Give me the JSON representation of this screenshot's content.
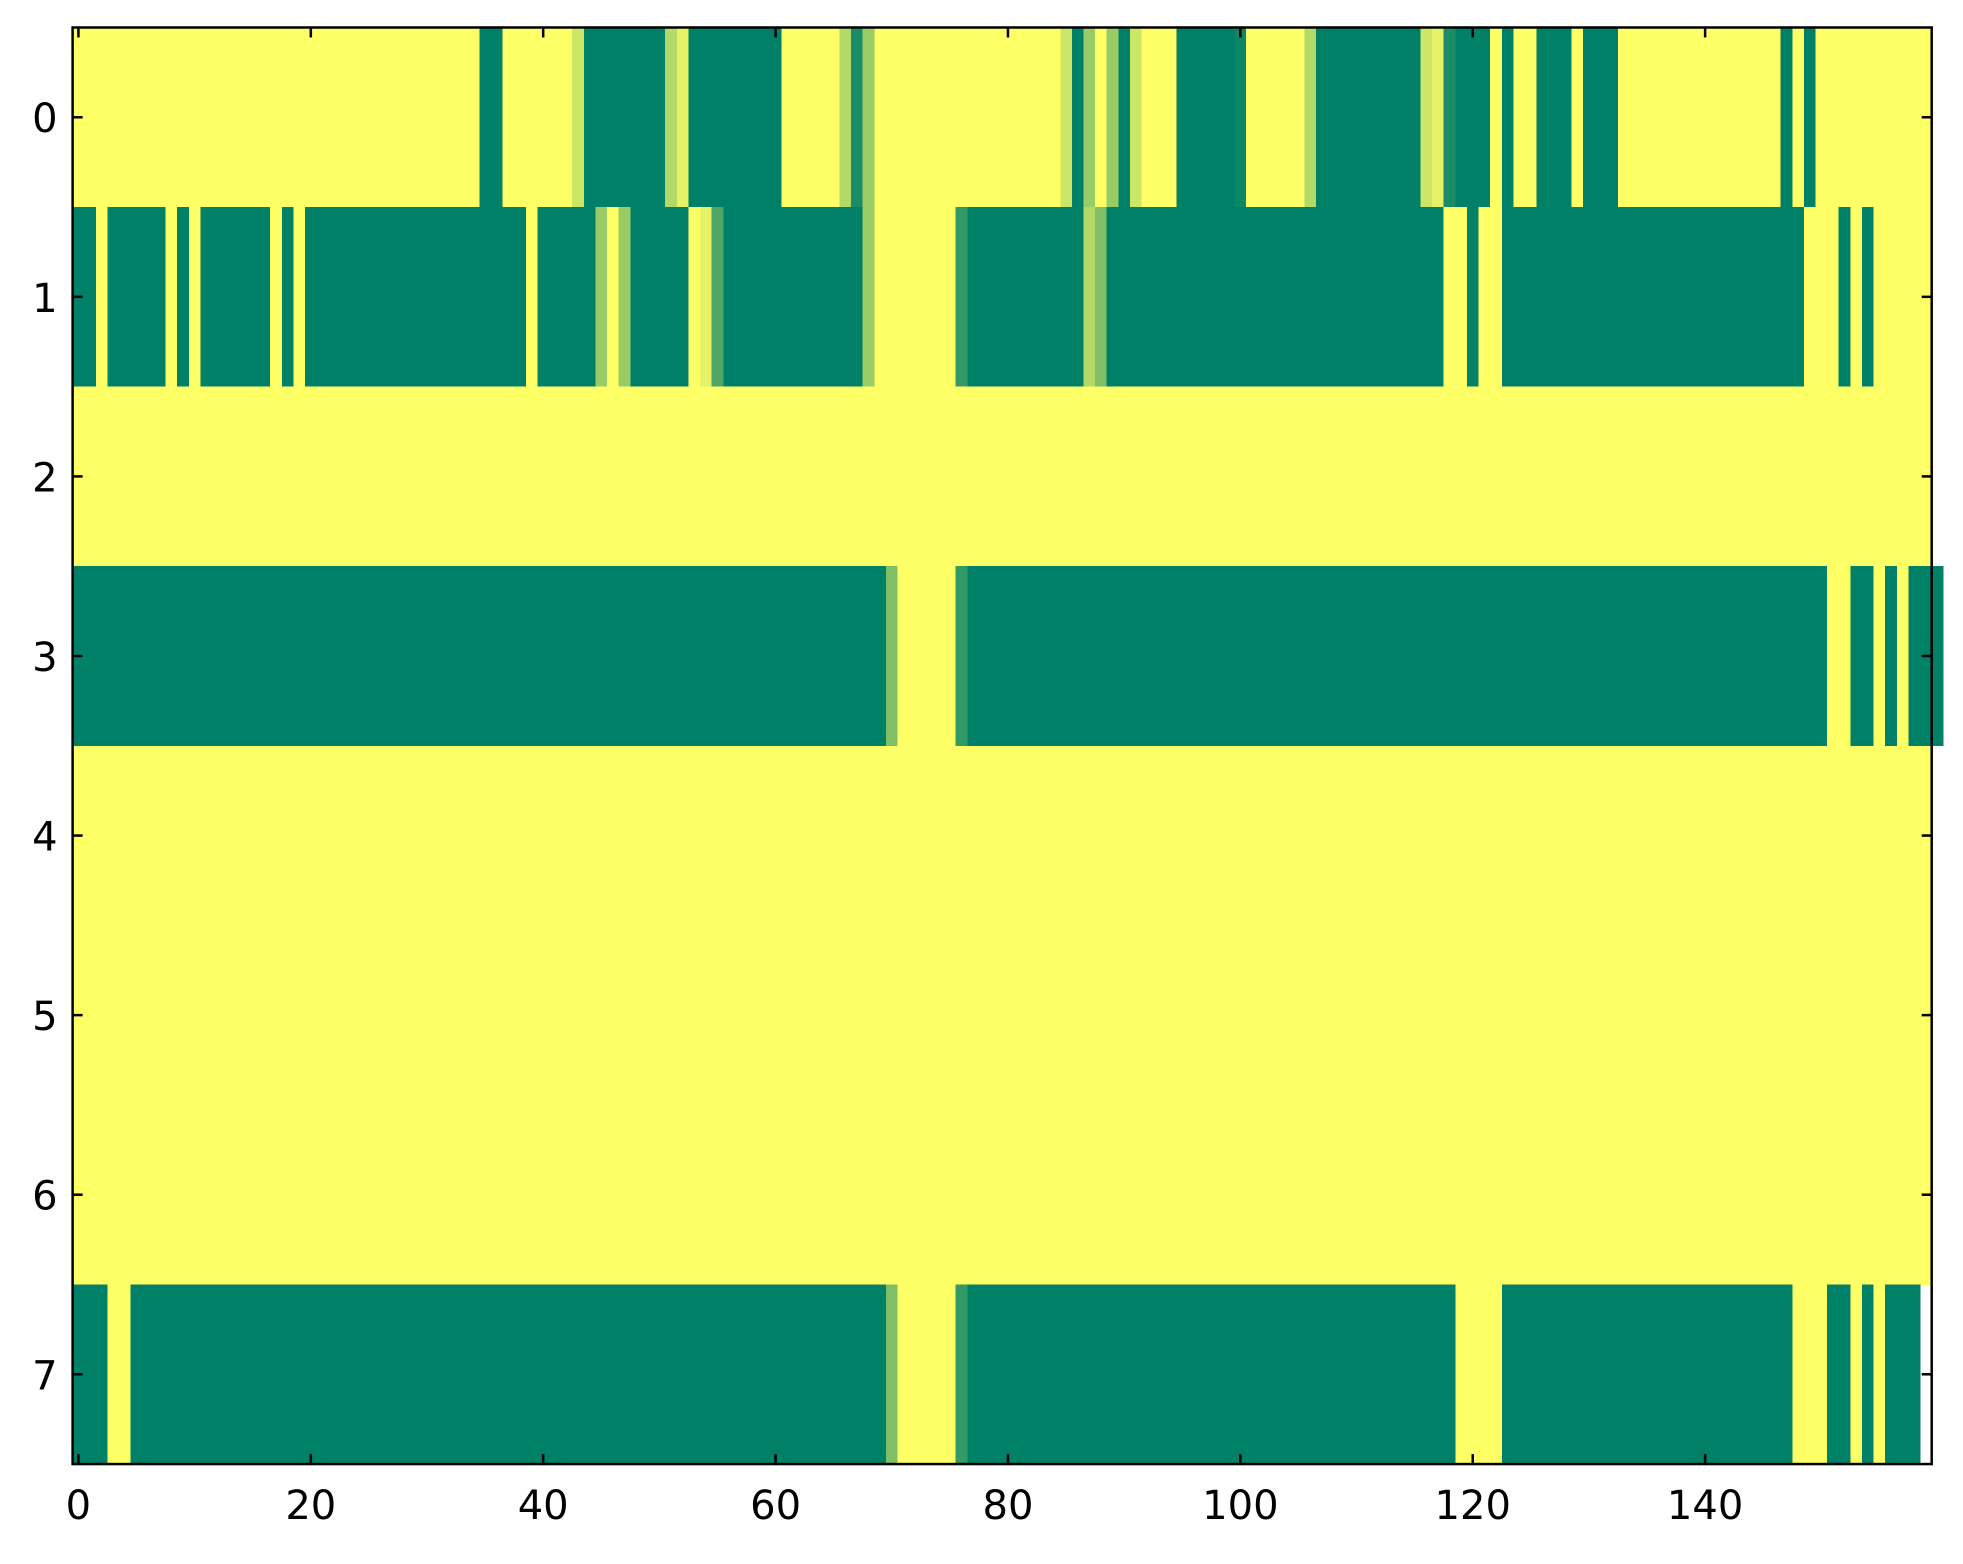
{
  "chart_data": {
    "type": "heatmap",
    "colormap": "summer",
    "xlim": [
      -0.5,
      159.5
    ],
    "ylim": [
      7.5,
      -0.5
    ],
    "xticks": [
      0,
      20,
      40,
      60,
      80,
      100,
      120,
      140
    ],
    "yticks": [
      0,
      1,
      2,
      3,
      4,
      5,
      6,
      7
    ],
    "z": [
      [
        1,
        1,
        1,
        1,
        1,
        1,
        1,
        1,
        1,
        1,
        1,
        1,
        1,
        1,
        1,
        1,
        1,
        1,
        1,
        1,
        1,
        1,
        1,
        1,
        1,
        1,
        1,
        1,
        1,
        1,
        1,
        1,
        1,
        1,
        1,
        0,
        0,
        1,
        1,
        1,
        1,
        1,
        1,
        0.8,
        0,
        0,
        0,
        0,
        0,
        0,
        0,
        0.7,
        0.9,
        0,
        0,
        0,
        0,
        0,
        0,
        0,
        0,
        1,
        1,
        1,
        1,
        1,
        0.7,
        0.1,
        0.6,
        1,
        1,
        1,
        1,
        1,
        1,
        1,
        1,
        1,
        1,
        1,
        1,
        1,
        1,
        1,
        1,
        0.8,
        0,
        0.6,
        1,
        0.6,
        0,
        0.8,
        1,
        1,
        1,
        0,
        0,
        0,
        0,
        0,
        0.05,
        1,
        1,
        1,
        1,
        1,
        0.7,
        0,
        0,
        0,
        0,
        0,
        0,
        0,
        0,
        0,
        0.8,
        0.9,
        0.1,
        0,
        0,
        0,
        1,
        0,
        1,
        1,
        0,
        0,
        0,
        1,
        0,
        0,
        0,
        1,
        1,
        1,
        1,
        1,
        1,
        1,
        1,
        1,
        1,
        1,
        1,
        1,
        1,
        0,
        1,
        0,
        1,
        1,
        1,
        1,
        1,
        1,
        1,
        1,
        1,
        1
      ],
      [
        0,
        0,
        1,
        0,
        0,
        0,
        0,
        0,
        1,
        0,
        1,
        0,
        0,
        0,
        0,
        0,
        0,
        1,
        0,
        1,
        0,
        0,
        0,
        0,
        0,
        0,
        0,
        0,
        0,
        0,
        0,
        0,
        0,
        0,
        0,
        0,
        0,
        0,
        0,
        1,
        0,
        0,
        0,
        0,
        0,
        0.6,
        1,
        0.6,
        0,
        0,
        0,
        0,
        0,
        1,
        0.9,
        0.3,
        0,
        0,
        0,
        0,
        0,
        0,
        0,
        0,
        0,
        0,
        0,
        0,
        0.6,
        1,
        1,
        1,
        1,
        1,
        1,
        1,
        0.2,
        0,
        0,
        0,
        0,
        0,
        0,
        0,
        0,
        0,
        0,
        0.7,
        0.5,
        0,
        0,
        0,
        0,
        0,
        0,
        0,
        0,
        0,
        0,
        0,
        0,
        0,
        0,
        0,
        0,
        0,
        0,
        0,
        0,
        0,
        0,
        0,
        0,
        0,
        0,
        0,
        0,
        0,
        1,
        1,
        0,
        1,
        1,
        0,
        0,
        0,
        0,
        0,
        0,
        0,
        0,
        0,
        0,
        0,
        0,
        0,
        0,
        0,
        0,
        0,
        0,
        0,
        0,
        0,
        0,
        0,
        0,
        0,
        0,
        1,
        1,
        1,
        0,
        1,
        0,
        1,
        1,
        1,
        1,
        1
      ],
      [
        1,
        1,
        1,
        1,
        1,
        1,
        1,
        1,
        1,
        1,
        1,
        1,
        1,
        1,
        1,
        1,
        1,
        1,
        1,
        1,
        1,
        1,
        1,
        1,
        1,
        1,
        1,
        1,
        1,
        1,
        1,
        1,
        1,
        1,
        1,
        1,
        1,
        1,
        1,
        1,
        1,
        1,
        1,
        1,
        1,
        1,
        1,
        1,
        1,
        1,
        1,
        1,
        1,
        1,
        1,
        1,
        1,
        1,
        1,
        1,
        1,
        1,
        1,
        1,
        1,
        1,
        1,
        1,
        1,
        1,
        1,
        1,
        1,
        1,
        1,
        1,
        1,
        1,
        1,
        1,
        1,
        1,
        1,
        1,
        1,
        1,
        1,
        1,
        1,
        1,
        1,
        1,
        1,
        1,
        1,
        1,
        1,
        1,
        1,
        1,
        1,
        1,
        1,
        1,
        1,
        1,
        1,
        1,
        1,
        1,
        1,
        1,
        1,
        1,
        1,
        1,
        1,
        1,
        1,
        1,
        1,
        1,
        1,
        1,
        1,
        1,
        1,
        1,
        1,
        1,
        1,
        1,
        1,
        1,
        1,
        1,
        1,
        1,
        1,
        1,
        1,
        1,
        1,
        1,
        1,
        1,
        1,
        1,
        1,
        1,
        1,
        1,
        1,
        1,
        1,
        1,
        1,
        1,
        1,
        1
      ],
      [
        0,
        0,
        0,
        0,
        0,
        0,
        0,
        0,
        0,
        0,
        0,
        0,
        0,
        0,
        0,
        0,
        0,
        0,
        0,
        0,
        0,
        0,
        0,
        0,
        0,
        0,
        0,
        0,
        0,
        0,
        0,
        0,
        0,
        0,
        0,
        0,
        0,
        0,
        0,
        0,
        0,
        0,
        0,
        0,
        0,
        0,
        0,
        0,
        0,
        0,
        0,
        0,
        0,
        0,
        0,
        0,
        0,
        0,
        0,
        0,
        0,
        0,
        0,
        0,
        0,
        0,
        0,
        0,
        0,
        0,
        0.5,
        1,
        1,
        1,
        1,
        1,
        0.2,
        0,
        0,
        0,
        0,
        0,
        0,
        0,
        0,
        0,
        0,
        0,
        0,
        0,
        0,
        0,
        0,
        0,
        0,
        0,
        0,
        0,
        0,
        0,
        0,
        0,
        0,
        0,
        0,
        0,
        0,
        0,
        0,
        0,
        0,
        0,
        0,
        0,
        0,
        0,
        0,
        0,
        0,
        0,
        0,
        0,
        0,
        0,
        0,
        0,
        0,
        0,
        0,
        0,
        0,
        0,
        0,
        0,
        0,
        0,
        0,
        0,
        0,
        0,
        0,
        0,
        0,
        0,
        0,
        0,
        0,
        0,
        0,
        0,
        0,
        1,
        1,
        0,
        0,
        1,
        0,
        1,
        0,
        0,
        0
      ],
      [
        1,
        1,
        1,
        1,
        1,
        1,
        1,
        1,
        1,
        1,
        1,
        1,
        1,
        1,
        1,
        1,
        1,
        1,
        1,
        1,
        1,
        1,
        1,
        1,
        1,
        1,
        1,
        1,
        1,
        1,
        1,
        1,
        1,
        1,
        1,
        1,
        1,
        1,
        1,
        1,
        1,
        1,
        1,
        1,
        1,
        1,
        1,
        1,
        1,
        1,
        1,
        1,
        1,
        1,
        1,
        1,
        1,
        1,
        1,
        1,
        1,
        1,
        1,
        1,
        1,
        1,
        1,
        1,
        1,
        1,
        1,
        1,
        1,
        1,
        1,
        1,
        1,
        1,
        1,
        1,
        1,
        1,
        1,
        1,
        1,
        1,
        1,
        1,
        1,
        1,
        1,
        1,
        1,
        1,
        1,
        1,
        1,
        1,
        1,
        1,
        1,
        1,
        1,
        1,
        1,
        1,
        1,
        1,
        1,
        1,
        1,
        1,
        1,
        1,
        1,
        1,
        1,
        1,
        1,
        1,
        1,
        1,
        1,
        1,
        1,
        1,
        1,
        1,
        1,
        1,
        1,
        1,
        1,
        1,
        1,
        1,
        1,
        1,
        1,
        1,
        1,
        1,
        1,
        1,
        1,
        1,
        1,
        1,
        1,
        1,
        1,
        1,
        1,
        1,
        1,
        1,
        1,
        1,
        1,
        1
      ],
      [
        1,
        1,
        1,
        1,
        1,
        1,
        1,
        1,
        1,
        1,
        1,
        1,
        1,
        1,
        1,
        1,
        1,
        1,
        1,
        1,
        1,
        1,
        1,
        1,
        1,
        1,
        1,
        1,
        1,
        1,
        1,
        1,
        1,
        1,
        1,
        1,
        1,
        1,
        1,
        1,
        1,
        1,
        1,
        1,
        1,
        1,
        1,
        1,
        1,
        1,
        1,
        1,
        1,
        1,
        1,
        1,
        1,
        1,
        1,
        1,
        1,
        1,
        1,
        1,
        1,
        1,
        1,
        1,
        1,
        1,
        1,
        1,
        1,
        1,
        1,
        1,
        1,
        1,
        1,
        1,
        1,
        1,
        1,
        1,
        1,
        1,
        1,
        1,
        1,
        1,
        1,
        1,
        1,
        1,
        1,
        1,
        1,
        1,
        1,
        1,
        1,
        1,
        1,
        1,
        1,
        1,
        1,
        1,
        1,
        1,
        1,
        1,
        1,
        1,
        1,
        1,
        1,
        1,
        1,
        1,
        1,
        1,
        1,
        1,
        1,
        1,
        1,
        1,
        1,
        1,
        1,
        1,
        1,
        1,
        1,
        1,
        1,
        1,
        1,
        1,
        1,
        1,
        1,
        1,
        1,
        1,
        1,
        1,
        1,
        1,
        1,
        1,
        1,
        1,
        1,
        1,
        1,
        1,
        1,
        1
      ],
      [
        1,
        1,
        1,
        1,
        1,
        1,
        1,
        1,
        1,
        1,
        1,
        1,
        1,
        1,
        1,
        1,
        1,
        1,
        1,
        1,
        1,
        1,
        1,
        1,
        1,
        1,
        1,
        1,
        1,
        1,
        1,
        1,
        1,
        1,
        1,
        1,
        1,
        1,
        1,
        1,
        1,
        1,
        1,
        1,
        1,
        1,
        1,
        1,
        1,
        1,
        1,
        1,
        1,
        1,
        1,
        1,
        1,
        1,
        1,
        1,
        1,
        1,
        1,
        1,
        1,
        1,
        1,
        1,
        1,
        1,
        1,
        1,
        1,
        1,
        1,
        1,
        1,
        1,
        1,
        1,
        1,
        1,
        1,
        1,
        1,
        1,
        1,
        1,
        1,
        1,
        1,
        1,
        1,
        1,
        1,
        1,
        1,
        1,
        1,
        1,
        1,
        1,
        1,
        1,
        1,
        1,
        1,
        1,
        1,
        1,
        1,
        1,
        1,
        1,
        1,
        1,
        1,
        1,
        1,
        1,
        1,
        1,
        1,
        1,
        1,
        1,
        1,
        1,
        1,
        1,
        1,
        1,
        1,
        1,
        1,
        1,
        1,
        1,
        1,
        1,
        1,
        1,
        1,
        1,
        1,
        1,
        1,
        1,
        1,
        1,
        1,
        1,
        1,
        1,
        1,
        1,
        1,
        1,
        1,
        1
      ],
      [
        0,
        0,
        0,
        1,
        1,
        0,
        0,
        0,
        0,
        0,
        0,
        0,
        0,
        0,
        0,
        0,
        0,
        0,
        0,
        0,
        0,
        0,
        0,
        0,
        0,
        0,
        0,
        0,
        0,
        0,
        0,
        0,
        0,
        0,
        0,
        0,
        0,
        0,
        0,
        0,
        0,
        0,
        0,
        0,
        0,
        0,
        0,
        0,
        0,
        0,
        0,
        0,
        0,
        0,
        0,
        0,
        0,
        0,
        0,
        0,
        0,
        0,
        0,
        0,
        0,
        0,
        0,
        0,
        0,
        0,
        0.5,
        1,
        1,
        1,
        1,
        1,
        0.2,
        0,
        0,
        0,
        0,
        0,
        0,
        0,
        0,
        0,
        0,
        0,
        0,
        0,
        0,
        0,
        0,
        0,
        0,
        0,
        0,
        0,
        0,
        0,
        0,
        0,
        0,
        0,
        0,
        0,
        0,
        0,
        0,
        0,
        0,
        0,
        0,
        0,
        0,
        0,
        0,
        0,
        0,
        1,
        1,
        1,
        1,
        0,
        0,
        0,
        0,
        0,
        0,
        0,
        0,
        0,
        0,
        0,
        0,
        0,
        0,
        0,
        0,
        0,
        0,
        0,
        0,
        0,
        0,
        0,
        0,
        0,
        1,
        1,
        1,
        0,
        0,
        1,
        0,
        1,
        0,
        0,
        0
      ]
    ]
  }
}
